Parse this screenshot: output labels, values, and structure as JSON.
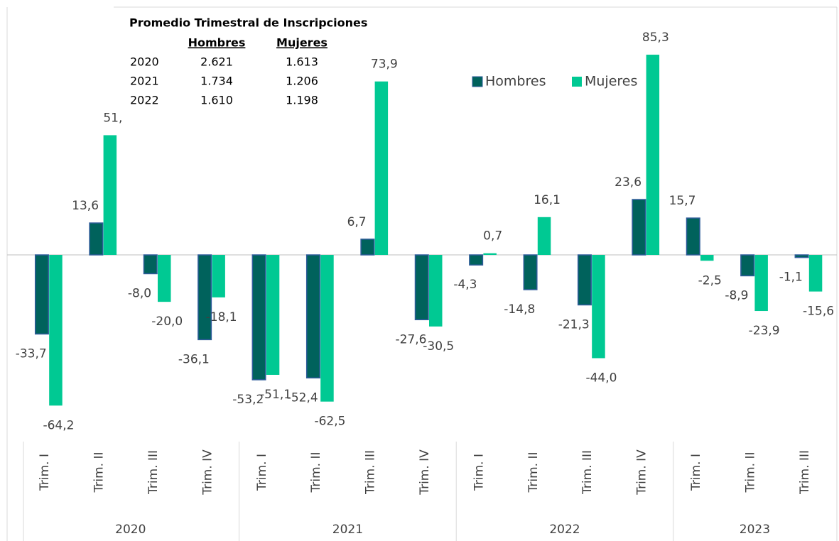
{
  "chart_data": {
    "type": "bar",
    "groups": [
      {
        "label": "2020",
        "categories": [
          "Trim. I",
          "Trim. II",
          "Trim. III",
          "Trim. IV"
        ]
      },
      {
        "label": "2021",
        "categories": [
          "Trim. I",
          "Trim. II",
          "Trim. III",
          "Trim. IV"
        ]
      },
      {
        "label": "2022",
        "categories": [
          "Trim. I",
          "Trim. II",
          "Trim. III",
          "Trim. IV"
        ]
      },
      {
        "label": "2023",
        "categories": [
          "Trim. I",
          "Trim. II",
          "Trim. III"
        ]
      }
    ],
    "series": [
      {
        "name": "Hombres",
        "color": "#00625c",
        "values": [
          -33.7,
          13.6,
          -8.0,
          -36.1,
          -53.2,
          -52.4,
          6.7,
          -27.6,
          -4.3,
          -14.8,
          -21.3,
          23.6,
          15.7,
          -8.9,
          -1.1
        ],
        "value_labels": [
          "-33,7",
          "13,6",
          "-8,0",
          "-36,1",
          "-53,2",
          "-52,4",
          "6,7",
          "-27,6",
          "-4,3",
          "-14,8",
          "-21,3",
          "23,6",
          "15,7",
          "-8,9",
          "-1,1"
        ]
      },
      {
        "name": "Mujeres",
        "color": "#00c993",
        "values": [
          -64.2,
          51,
          -20.0,
          -18.1,
          -51.1,
          -62.5,
          73.9,
          -30.5,
          0.7,
          16.1,
          -44.0,
          85.3,
          -2.5,
          -23.9,
          -15.6
        ],
        "value_labels": [
          "-64,2",
          "51,",
          "-20,0",
          "-18,1",
          "-51,1",
          "-62,5",
          "73,9",
          "-30,5",
          "0,7",
          "16,1",
          "-44,0",
          "85,3",
          "-2,5",
          "-23,9",
          "-15,6"
        ]
      }
    ],
    "ylim": [
      -80,
      90
    ],
    "legend": "top-right",
    "annotation": {
      "title": "Promedio Trimestral de Inscripciones",
      "columns": [
        "Hombres",
        "Mujeres"
      ],
      "rows": [
        {
          "year": "2020",
          "values": [
            "2.621",
            "1.613"
          ]
        },
        {
          "year": "2021",
          "values": [
            "1.734",
            "1.206"
          ]
        },
        {
          "year": "2022",
          "values": [
            "1.610",
            "1.198"
          ]
        }
      ]
    }
  }
}
